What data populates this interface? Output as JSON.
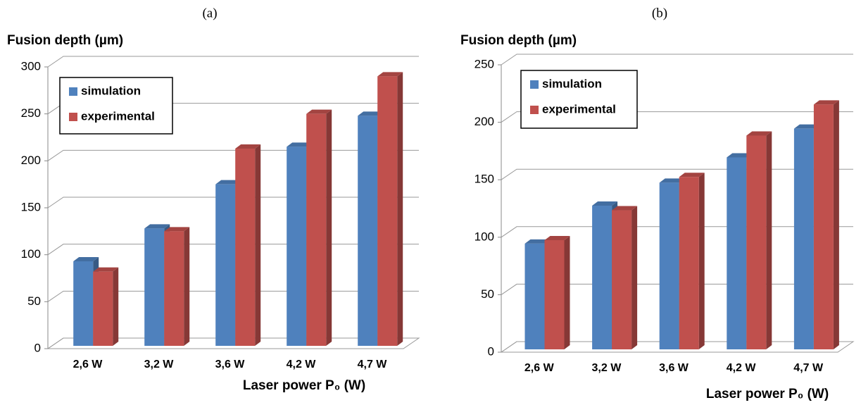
{
  "chart_data": [
    {
      "type": "bar",
      "title": "(a)",
      "y_label": "Fusion depth (µm)",
      "x_label": "Laser power P₀ (W)",
      "categories": [
        "2,6 W",
        "3,2 W",
        "3,6 W",
        "4,2 W",
        "4,7 W"
      ],
      "series": [
        {
          "name": "simulation",
          "color": "#4f81bd",
          "values": [
            90,
            125,
            172,
            212,
            245
          ]
        },
        {
          "name": "experimental",
          "color": "#c0504d",
          "values": [
            79,
            122,
            210,
            247,
            287
          ]
        }
      ],
      "ylim": [
        0,
        300
      ],
      "yticks": [
        0,
        50,
        100,
        150,
        200,
        250,
        300
      ],
      "grid": true,
      "legend": "upper left"
    },
    {
      "type": "bar",
      "title": "(b)",
      "y_label": "Fusion depth (µm)",
      "x_label": "Laser power P₀ (W)",
      "categories": [
        "2,6 W",
        "3,2 W",
        "3,6 W",
        "4,2 W",
        "4,7 W"
      ],
      "series": [
        {
          "name": "simulation",
          "color": "#4f81bd",
          "values": [
            92,
            125,
            145,
            167,
            192
          ]
        },
        {
          "name": "experimental",
          "color": "#c0504d",
          "values": [
            95,
            121,
            150,
            186,
            213
          ]
        }
      ],
      "ylim": [
        0,
        250
      ],
      "yticks": [
        0,
        50,
        100,
        150,
        200,
        250
      ],
      "grid": true,
      "legend": "upper left"
    }
  ]
}
